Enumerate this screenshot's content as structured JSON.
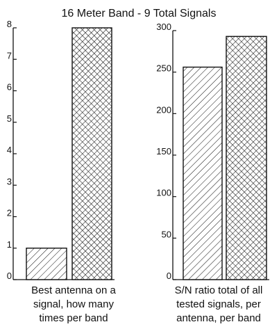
{
  "chart_data": [
    {
      "type": "bar",
      "title": "16 Meter Band - 9 Total Signals",
      "categories": [
        "",
        ""
      ],
      "values": [
        1,
        8
      ],
      "ylim": [
        0,
        8
      ],
      "yticks": [
        0,
        1,
        2,
        3,
        4,
        5,
        6,
        7,
        8
      ],
      "ylabel": "",
      "xlabel": "",
      "caption_lines": [
        "Best antenna on a",
        "signal, how many",
        "times per band"
      ],
      "grid": false,
      "bar_patterns": [
        "diagonal-hatch",
        "crosshatch"
      ]
    },
    {
      "type": "bar",
      "title": "",
      "categories": [
        "",
        ""
      ],
      "values": [
        256,
        293
      ],
      "ylim": [
        0,
        300
      ],
      "yticks": [
        0,
        50,
        100,
        150,
        200,
        250,
        300
      ],
      "ylabel": "",
      "xlabel": "",
      "caption_lines": [
        "S/N ratio total of all",
        "tested signals, per",
        "antenna, per band"
      ],
      "grid": false,
      "bar_patterns": [
        "diagonal-hatch",
        "crosshatch"
      ]
    }
  ],
  "colors": {
    "ink": "#111111",
    "background": "#ffffff"
  }
}
